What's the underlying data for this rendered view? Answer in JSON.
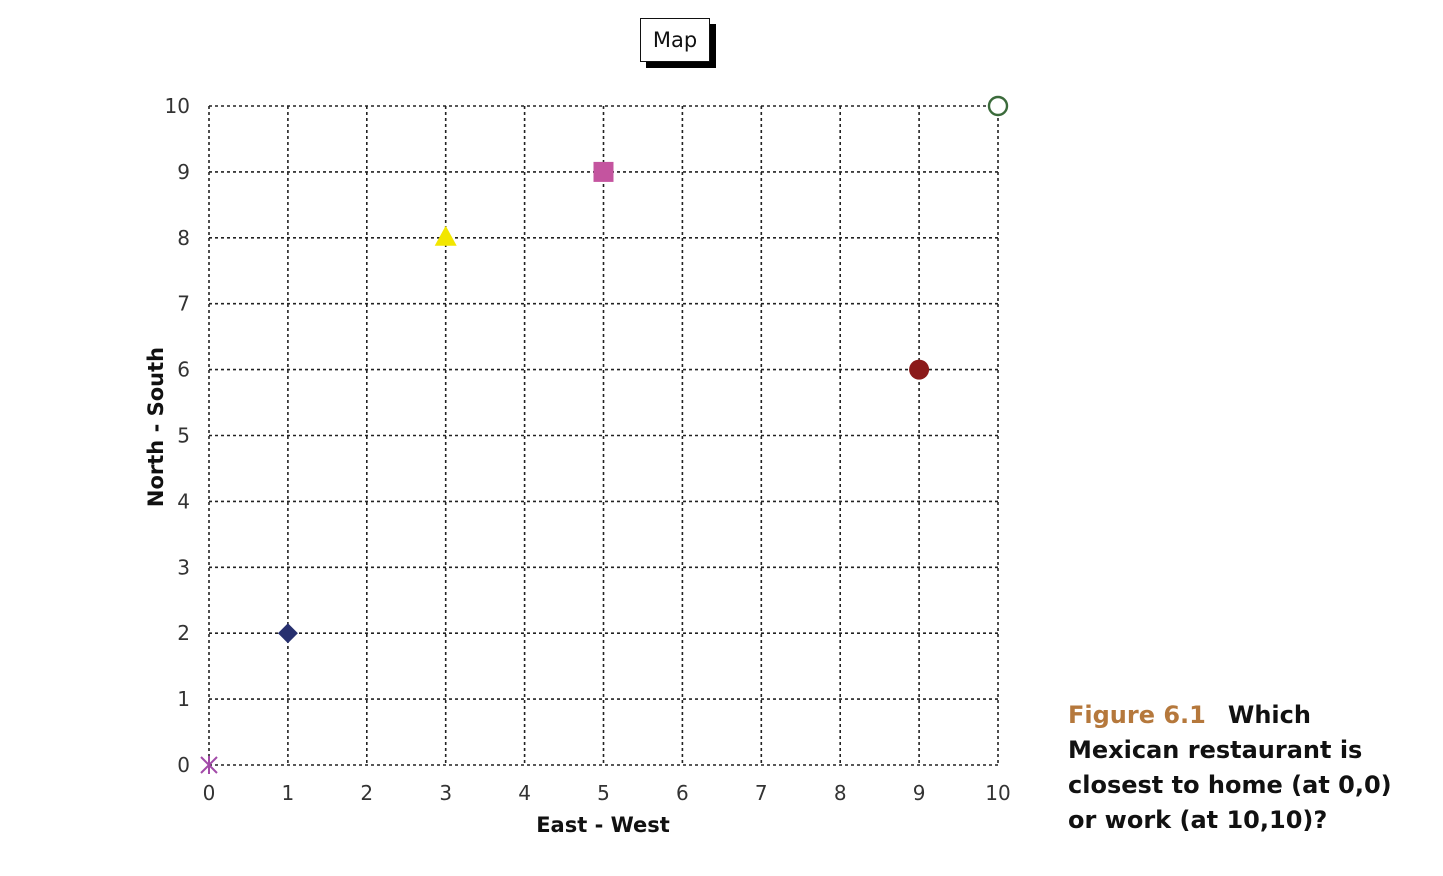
{
  "chart_data": {
    "type": "scatter",
    "title": "Map",
    "xlabel": "East - West",
    "ylabel": "North - South",
    "xlim": [
      0,
      10
    ],
    "ylim": [
      0,
      10
    ],
    "xticks": [
      "0",
      "1",
      "2",
      "3",
      "4",
      "5",
      "6",
      "7",
      "8",
      "9",
      "10"
    ],
    "yticks": [
      "0",
      "1",
      "2",
      "3",
      "4",
      "5",
      "6",
      "7",
      "8",
      "9",
      "10"
    ],
    "grid": true,
    "grid_style": "dotted",
    "points": [
      {
        "x": 0,
        "y": 0,
        "marker": "asterisk",
        "color": "#a24aa8"
      },
      {
        "x": 1,
        "y": 2,
        "marker": "diamond",
        "color": "#27306f"
      },
      {
        "x": 3,
        "y": 8,
        "marker": "triangle",
        "color": "#f2e600"
      },
      {
        "x": 5,
        "y": 9,
        "marker": "square",
        "color": "#c4549f"
      },
      {
        "x": 9,
        "y": 6,
        "marker": "circle",
        "color": "#8b1a1a"
      },
      {
        "x": 10,
        "y": 10,
        "marker": "open-circle",
        "color": "#3b6b3b"
      }
    ]
  },
  "caption": {
    "label": "Figure 6.1",
    "text": "Which Mexican restaurant is closest to home (at 0,0) or work (at 10,10)?"
  }
}
